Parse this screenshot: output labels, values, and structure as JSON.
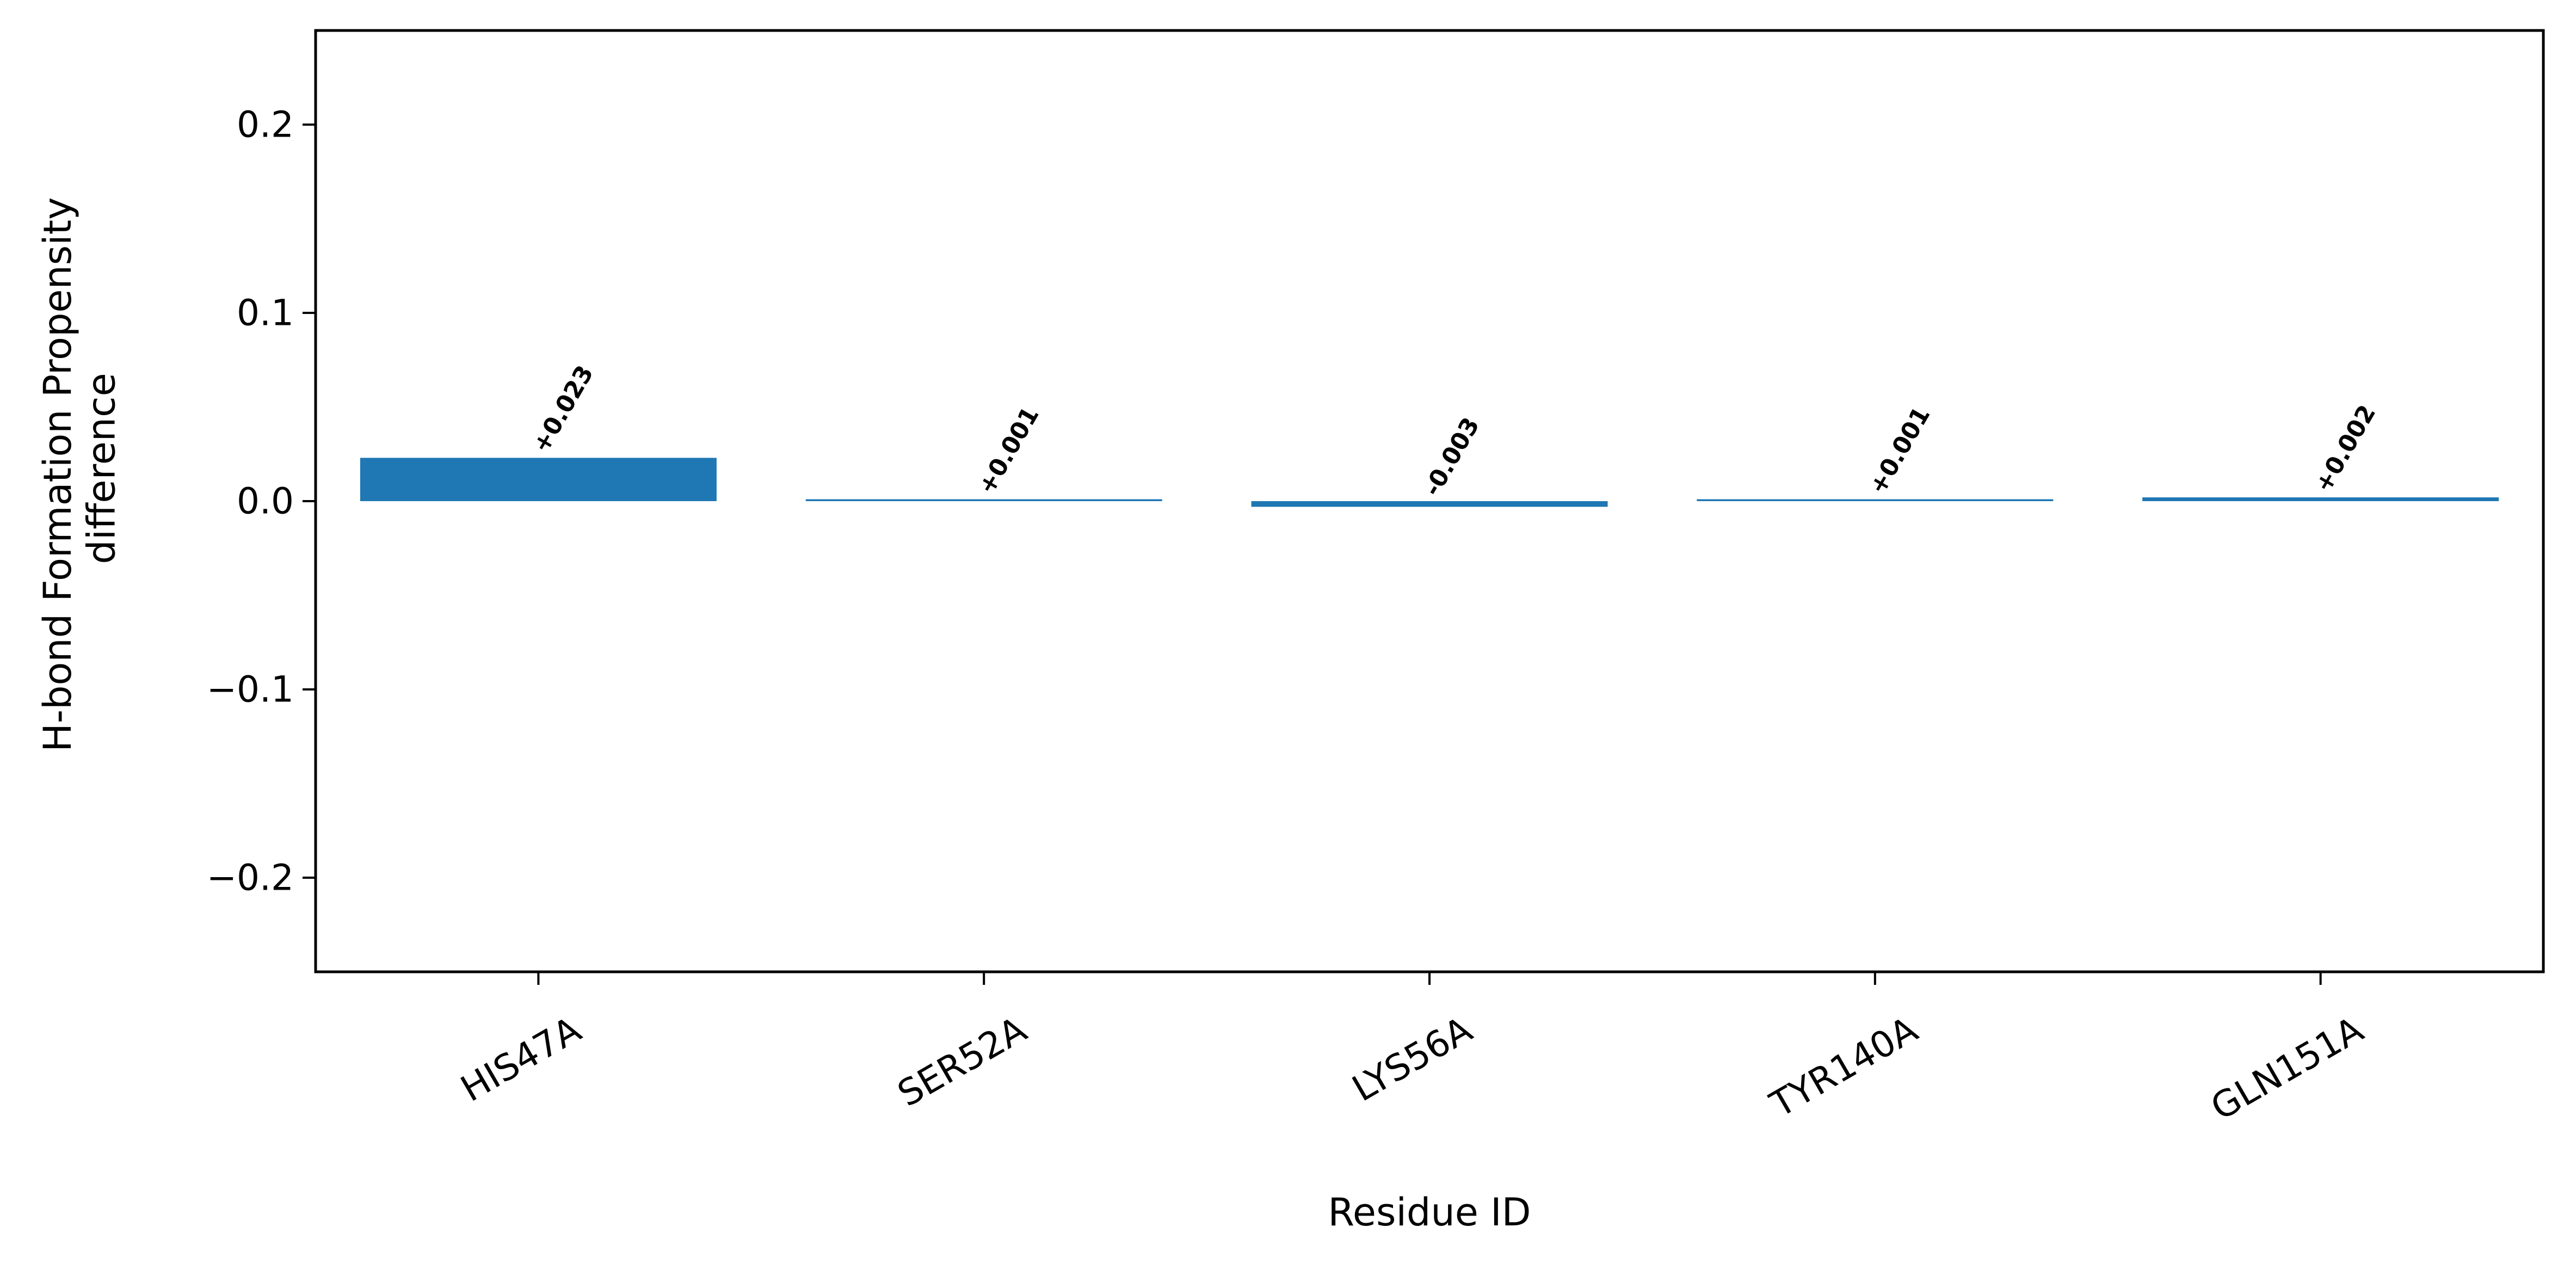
{
  "chart_data": {
    "type": "bar",
    "title": "",
    "xlabel": "Residue ID",
    "ylabel_lines": [
      "H-bond Formation Propensity",
      "difference"
    ],
    "categories": [
      "HIS47A",
      "SER52A",
      "LYS56A",
      "TYR140A",
      "GLN151A"
    ],
    "values": [
      0.023,
      0.001,
      -0.003,
      0.001,
      0.002
    ],
    "data_labels": [
      "+0.023",
      "+0.001",
      "-0.003",
      "+0.001",
      "+0.002"
    ],
    "ylim": [
      -0.25,
      0.25
    ],
    "yticks": [
      -0.2,
      -0.1,
      0.0,
      0.1,
      0.2
    ],
    "ytick_labels": [
      "−0.2",
      "−0.1",
      "0.0",
      "0.1",
      "0.2"
    ],
    "grid": false,
    "legend": "none",
    "bar_color": "#1f77b4"
  }
}
